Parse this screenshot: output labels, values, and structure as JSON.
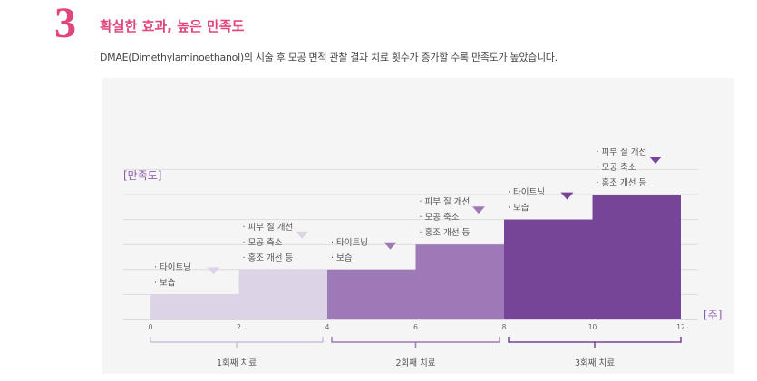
{
  "header": {
    "number": "3",
    "title": "확실한 효과, 높은 만족도",
    "subtitle": "DMAE(Dimethylaminoethanol)의 시술 후 모공 면적 관찰 결과 치료 횟수가 증가할 수록 만족도가 높았습니다."
  },
  "chart_data": {
    "type": "bar",
    "ylabel": "[만족도]",
    "xlabel": "[주]",
    "xlim": [
      0,
      12
    ],
    "ylim": [
      0,
      6
    ],
    "x_ticks": [
      "0",
      "2",
      "4",
      "6",
      "8",
      "10",
      "12"
    ],
    "steps": [
      {
        "x0": 0,
        "x1": 2,
        "level": 1,
        "color": "#ddd3e7",
        "labels": [
          "· 타이트닝",
          "· 보습"
        ],
        "marker_color": "#ddd3e7"
      },
      {
        "x0": 2,
        "x1": 4,
        "level": 2,
        "color": "#ddd3e7",
        "labels": [
          "· 피부 질 개선",
          "· 모공 축소",
          "· 홍조 개선 등"
        ],
        "marker_color": "#ddd3e7"
      },
      {
        "x0": 4,
        "x1": 6,
        "level": 2,
        "color": "#9d7ab7",
        "labels": [
          "· 타이트닝",
          "· 보습"
        ],
        "marker_color": "#9d7ab7"
      },
      {
        "x0": 6,
        "x1": 8,
        "level": 3,
        "color": "#9d7ab7",
        "labels": [
          "· 피부 질 개선",
          "· 모공 축소",
          "· 홍조 개선 등"
        ],
        "marker_color": "#9d7ab7"
      },
      {
        "x0": 8,
        "x1": 10,
        "level": 4,
        "color": "#764597",
        "labels": [
          "· 타이트닝",
          "· 보습"
        ],
        "marker_color": "#764597"
      },
      {
        "x0": 10,
        "x1": 12,
        "level": 5,
        "color": "#764597",
        "labels": [
          "· 피부 질 개선",
          "· 모공 축소",
          "· 홍조 개선 등"
        ],
        "marker_color": "#764597"
      }
    ],
    "treatments": [
      {
        "label": "1회째 치료",
        "x0": 0,
        "x1": 4,
        "color": "#cdc0dc"
      },
      {
        "label": "2회째 치료",
        "x0": 4,
        "x1": 8,
        "color": "#9d7ab7"
      },
      {
        "label": "3회째 치료",
        "x0": 8,
        "x1": 12,
        "color": "#764597"
      }
    ],
    "grid": true
  }
}
